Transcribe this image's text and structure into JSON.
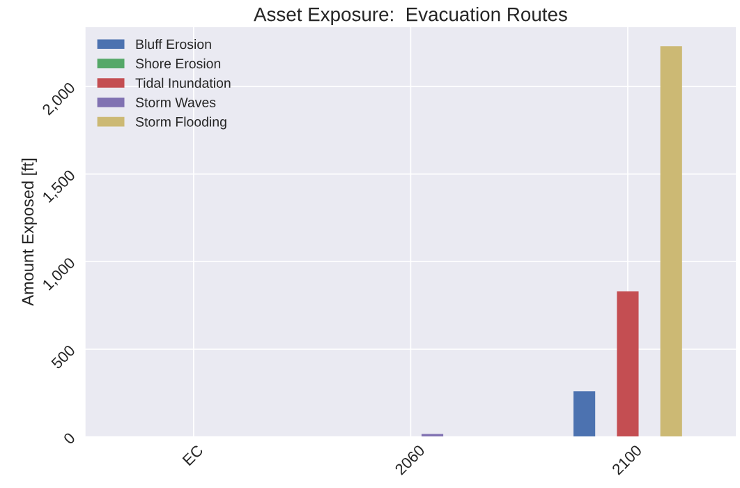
{
  "chart_data": {
    "type": "bar",
    "title": "Asset Exposure:  Evacuation Routes",
    "ylabel": "Amount Exposed [ft]",
    "categories": [
      "EC",
      "2060",
      "2100"
    ],
    "series": [
      {
        "name": "Bluff Erosion",
        "color": "#4c72b0",
        "values": [
          0,
          0,
          260
        ]
      },
      {
        "name": "Shore Erosion",
        "color": "#55a868",
        "values": [
          0,
          0,
          0
        ]
      },
      {
        "name": "Tidal Inundation",
        "color": "#c44e52",
        "values": [
          0,
          0,
          830
        ]
      },
      {
        "name": "Storm Waves",
        "color": "#8172b2",
        "values": [
          0,
          16,
          0
        ]
      },
      {
        "name": "Storm Flooding",
        "color": "#ccb974",
        "values": [
          0,
          0,
          2230
        ]
      }
    ],
    "ylim": [
      0,
      2340
    ],
    "yticks": [
      {
        "value": 0,
        "label": "0"
      },
      {
        "value": 500,
        "label": "500"
      },
      {
        "value": 1000,
        "label": "1,000"
      },
      {
        "value": 1500,
        "label": "1,500"
      },
      {
        "value": 2000,
        "label": "2,000"
      }
    ],
    "grid": true,
    "legend": "top left"
  }
}
